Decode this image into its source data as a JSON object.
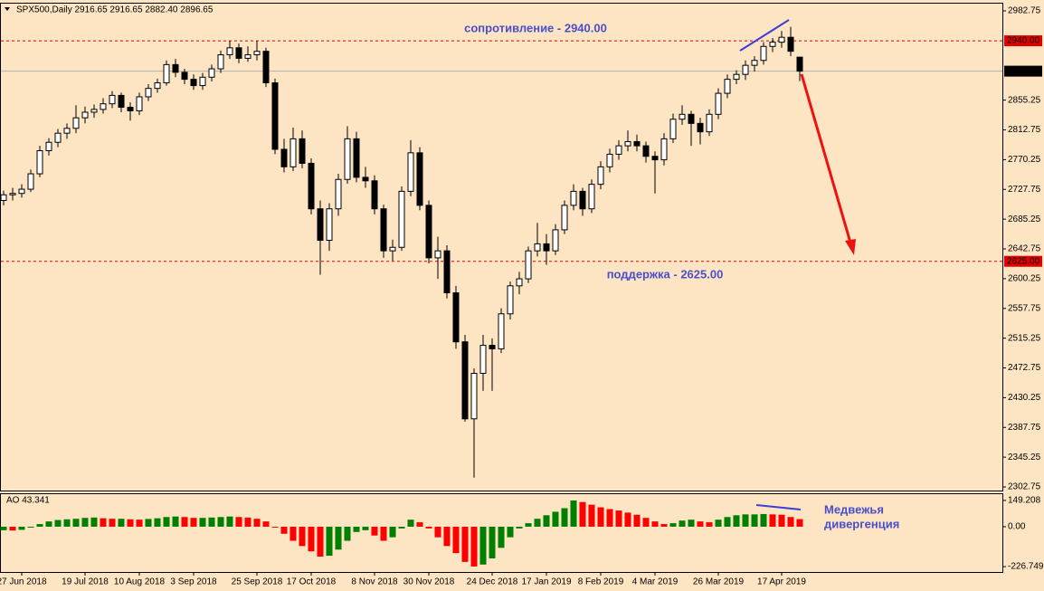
{
  "chart_data": [
    {
      "type": "candlestick",
      "title": "SPX500,Daily  2916.65 2916.65 2882.40 2896.65",
      "categories": [
        null,
        null,
        "27 Jun 2018",
        null,
        null,
        null,
        null,
        null,
        null,
        "19 Jul 2018",
        null,
        null,
        null,
        null,
        null,
        "10 Aug 2018",
        null,
        null,
        null,
        null,
        null,
        "3 Sep 2018",
        null,
        null,
        null,
        null,
        null,
        null,
        "25 Sep 2018",
        null,
        null,
        null,
        null,
        null,
        "17 Oct 2018",
        null,
        null,
        null,
        null,
        null,
        null,
        "8 Nov 2018",
        null,
        null,
        null,
        null,
        null,
        "30 Nov 2018",
        null,
        null,
        null,
        null,
        null,
        null,
        "24 Dec 2018",
        null,
        null,
        null,
        null,
        null,
        "17 Jan 2019",
        null,
        null,
        null,
        null,
        null,
        "8 Feb 2019",
        null,
        null,
        null,
        null,
        null,
        "4 Mar 2019",
        null,
        null,
        null,
        null,
        null,
        null,
        "26 Mar 2019",
        null,
        null,
        null,
        null,
        null,
        null,
        "17 Apr 2019",
        null,
        null
      ],
      "open": [
        2712,
        2720,
        2722,
        2728,
        2750,
        2783,
        2795,
        2808,
        2815,
        2830,
        2838,
        2842,
        2850,
        2862,
        2845,
        2840,
        2860,
        2872,
        2880,
        2906,
        2895,
        2885,
        2876,
        2888,
        2900,
        2920,
        2930,
        2915,
        2920,
        2925,
        2880,
        2785,
        2760,
        2800,
        2765,
        2700,
        2655,
        2700,
        2742,
        2800,
        2745,
        2740,
        2700,
        2640,
        2645,
        2725,
        2780,
        2705,
        2630,
        2640,
        2580,
        2510,
        2400,
        2465,
        2505,
        2500,
        2550,
        2590,
        2600,
        2640,
        2650,
        2640,
        2670,
        2705,
        2725,
        2700,
        2735,
        2760,
        2778,
        2790,
        2796,
        2790,
        2775,
        2770,
        2800,
        2828,
        2835,
        2822,
        2810,
        2835,
        2865,
        2885,
        2892,
        2905,
        2912,
        2932,
        2938,
        2945,
        2916.65
      ],
      "high": [
        2726,
        2730,
        2735,
        2756,
        2790,
        2801,
        2814,
        2822,
        2848,
        2846,
        2849,
        2858,
        2868,
        2866,
        2852,
        2866,
        2878,
        2886,
        2912,
        2914,
        2900,
        2892,
        2894,
        2906,
        2926,
        2940,
        2936,
        2932,
        2940,
        2930,
        2886,
        2800,
        2816,
        2812,
        2772,
        2712,
        2708,
        2750,
        2818,
        2810,
        2760,
        2748,
        2706,
        2656,
        2732,
        2798,
        2788,
        2712,
        2660,
        2648,
        2590,
        2520,
        2472,
        2520,
        2515,
        2558,
        2596,
        2610,
        2646,
        2680,
        2664,
        2678,
        2712,
        2735,
        2730,
        2742,
        2768,
        2786,
        2798,
        2812,
        2806,
        2796,
        2782,
        2808,
        2836,
        2848,
        2840,
        2830,
        2842,
        2872,
        2892,
        2898,
        2912,
        2918,
        2938,
        2944,
        2954,
        2960,
        2916.65
      ],
      "low": [
        2705,
        2712,
        2716,
        2724,
        2745,
        2776,
        2788,
        2800,
        2808,
        2822,
        2830,
        2836,
        2844,
        2838,
        2826,
        2834,
        2854,
        2866,
        2876,
        2888,
        2878,
        2870,
        2870,
        2882,
        2894,
        2914,
        2908,
        2910,
        2912,
        2874,
        2778,
        2752,
        2754,
        2758,
        2692,
        2606,
        2640,
        2690,
        2736,
        2738,
        2730,
        2692,
        2630,
        2626,
        2640,
        2718,
        2698,
        2622,
        2600,
        2572,
        2500,
        2396,
        2316,
        2440,
        2440,
        2494,
        2542,
        2578,
        2594,
        2632,
        2620,
        2634,
        2664,
        2698,
        2690,
        2694,
        2728,
        2752,
        2770,
        2782,
        2782,
        2766,
        2722,
        2762,
        2794,
        2820,
        2790,
        2792,
        2804,
        2828,
        2858,
        2878,
        2884,
        2896,
        2906,
        2924,
        2930,
        2918,
        2882.4
      ],
      "close": [
        2720,
        2722,
        2728,
        2750,
        2783,
        2795,
        2808,
        2815,
        2830,
        2838,
        2842,
        2850,
        2862,
        2845,
        2840,
        2860,
        2872,
        2880,
        2906,
        2895,
        2885,
        2876,
        2888,
        2900,
        2920,
        2930,
        2915,
        2920,
        2925,
        2880,
        2785,
        2760,
        2800,
        2765,
        2700,
        2655,
        2700,
        2742,
        2800,
        2745,
        2740,
        2700,
        2640,
        2645,
        2725,
        2780,
        2705,
        2630,
        2640,
        2580,
        2510,
        2400,
        2465,
        2505,
        2500,
        2550,
        2590,
        2600,
        2640,
        2650,
        2640,
        2670,
        2705,
        2725,
        2700,
        2735,
        2760,
        2778,
        2790,
        2796,
        2790,
        2775,
        2770,
        2800,
        2828,
        2835,
        2822,
        2810,
        2835,
        2865,
        2885,
        2892,
        2905,
        2912,
        2932,
        2938,
        2945,
        2925,
        2896.65
      ],
      "up_color": "#ffffff",
      "down_color": "#000000",
      "ylim": [
        2297.6,
        2993.1
      ],
      "yticks": [
        2982.75,
        2855.25,
        2812.75,
        2770.25,
        2727.75,
        2685.25,
        2642.75,
        2600.25,
        2557.75,
        2515.25,
        2472.75,
        2430.25,
        2387.75,
        2345.25,
        2302.75
      ],
      "levels": [
        {
          "value": 2940,
          "label": "2940.00",
          "text": "сопротивление - 2940.00",
          "color": "#e00000"
        },
        {
          "value": 2625,
          "label": "2625.00",
          "text": "поддержка - 2625.00",
          "color": "#e00000"
        }
      ]
    },
    {
      "type": "histogram",
      "title": "AO 43.341",
      "values": [
        -20,
        -22,
        -18,
        -5,
        15,
        30,
        38,
        42,
        45,
        50,
        52,
        48,
        45,
        45,
        42,
        40,
        44,
        48,
        55,
        58,
        55,
        50,
        50,
        52,
        55,
        58,
        55,
        52,
        45,
        30,
        -5,
        -40,
        -80,
        -110,
        -140,
        -170,
        -165,
        -130,
        -80,
        -30,
        -20,
        -50,
        -80,
        -60,
        -10,
        40,
        25,
        -10,
        -60,
        -110,
        -150,
        -200,
        -226,
        -215,
        -180,
        -120,
        -60,
        -10,
        20,
        45,
        65,
        85,
        105,
        149,
        140,
        125,
        110,
        100,
        92,
        80,
        68,
        50,
        30,
        15,
        20,
        35,
        40,
        30,
        25,
        40,
        55,
        65,
        70,
        70,
        72,
        70,
        68,
        55,
        43.341
      ],
      "up_color": "#008000",
      "down_color": "#ff0000",
      "ylim": [
        -257.2,
        184.8
      ],
      "yticks": [
        149.208,
        {
          "value": 0,
          "label": "0.00"
        },
        -226.749
      ],
      "annotations": [
        "Медвежья",
        "дивергенция"
      ]
    }
  ]
}
